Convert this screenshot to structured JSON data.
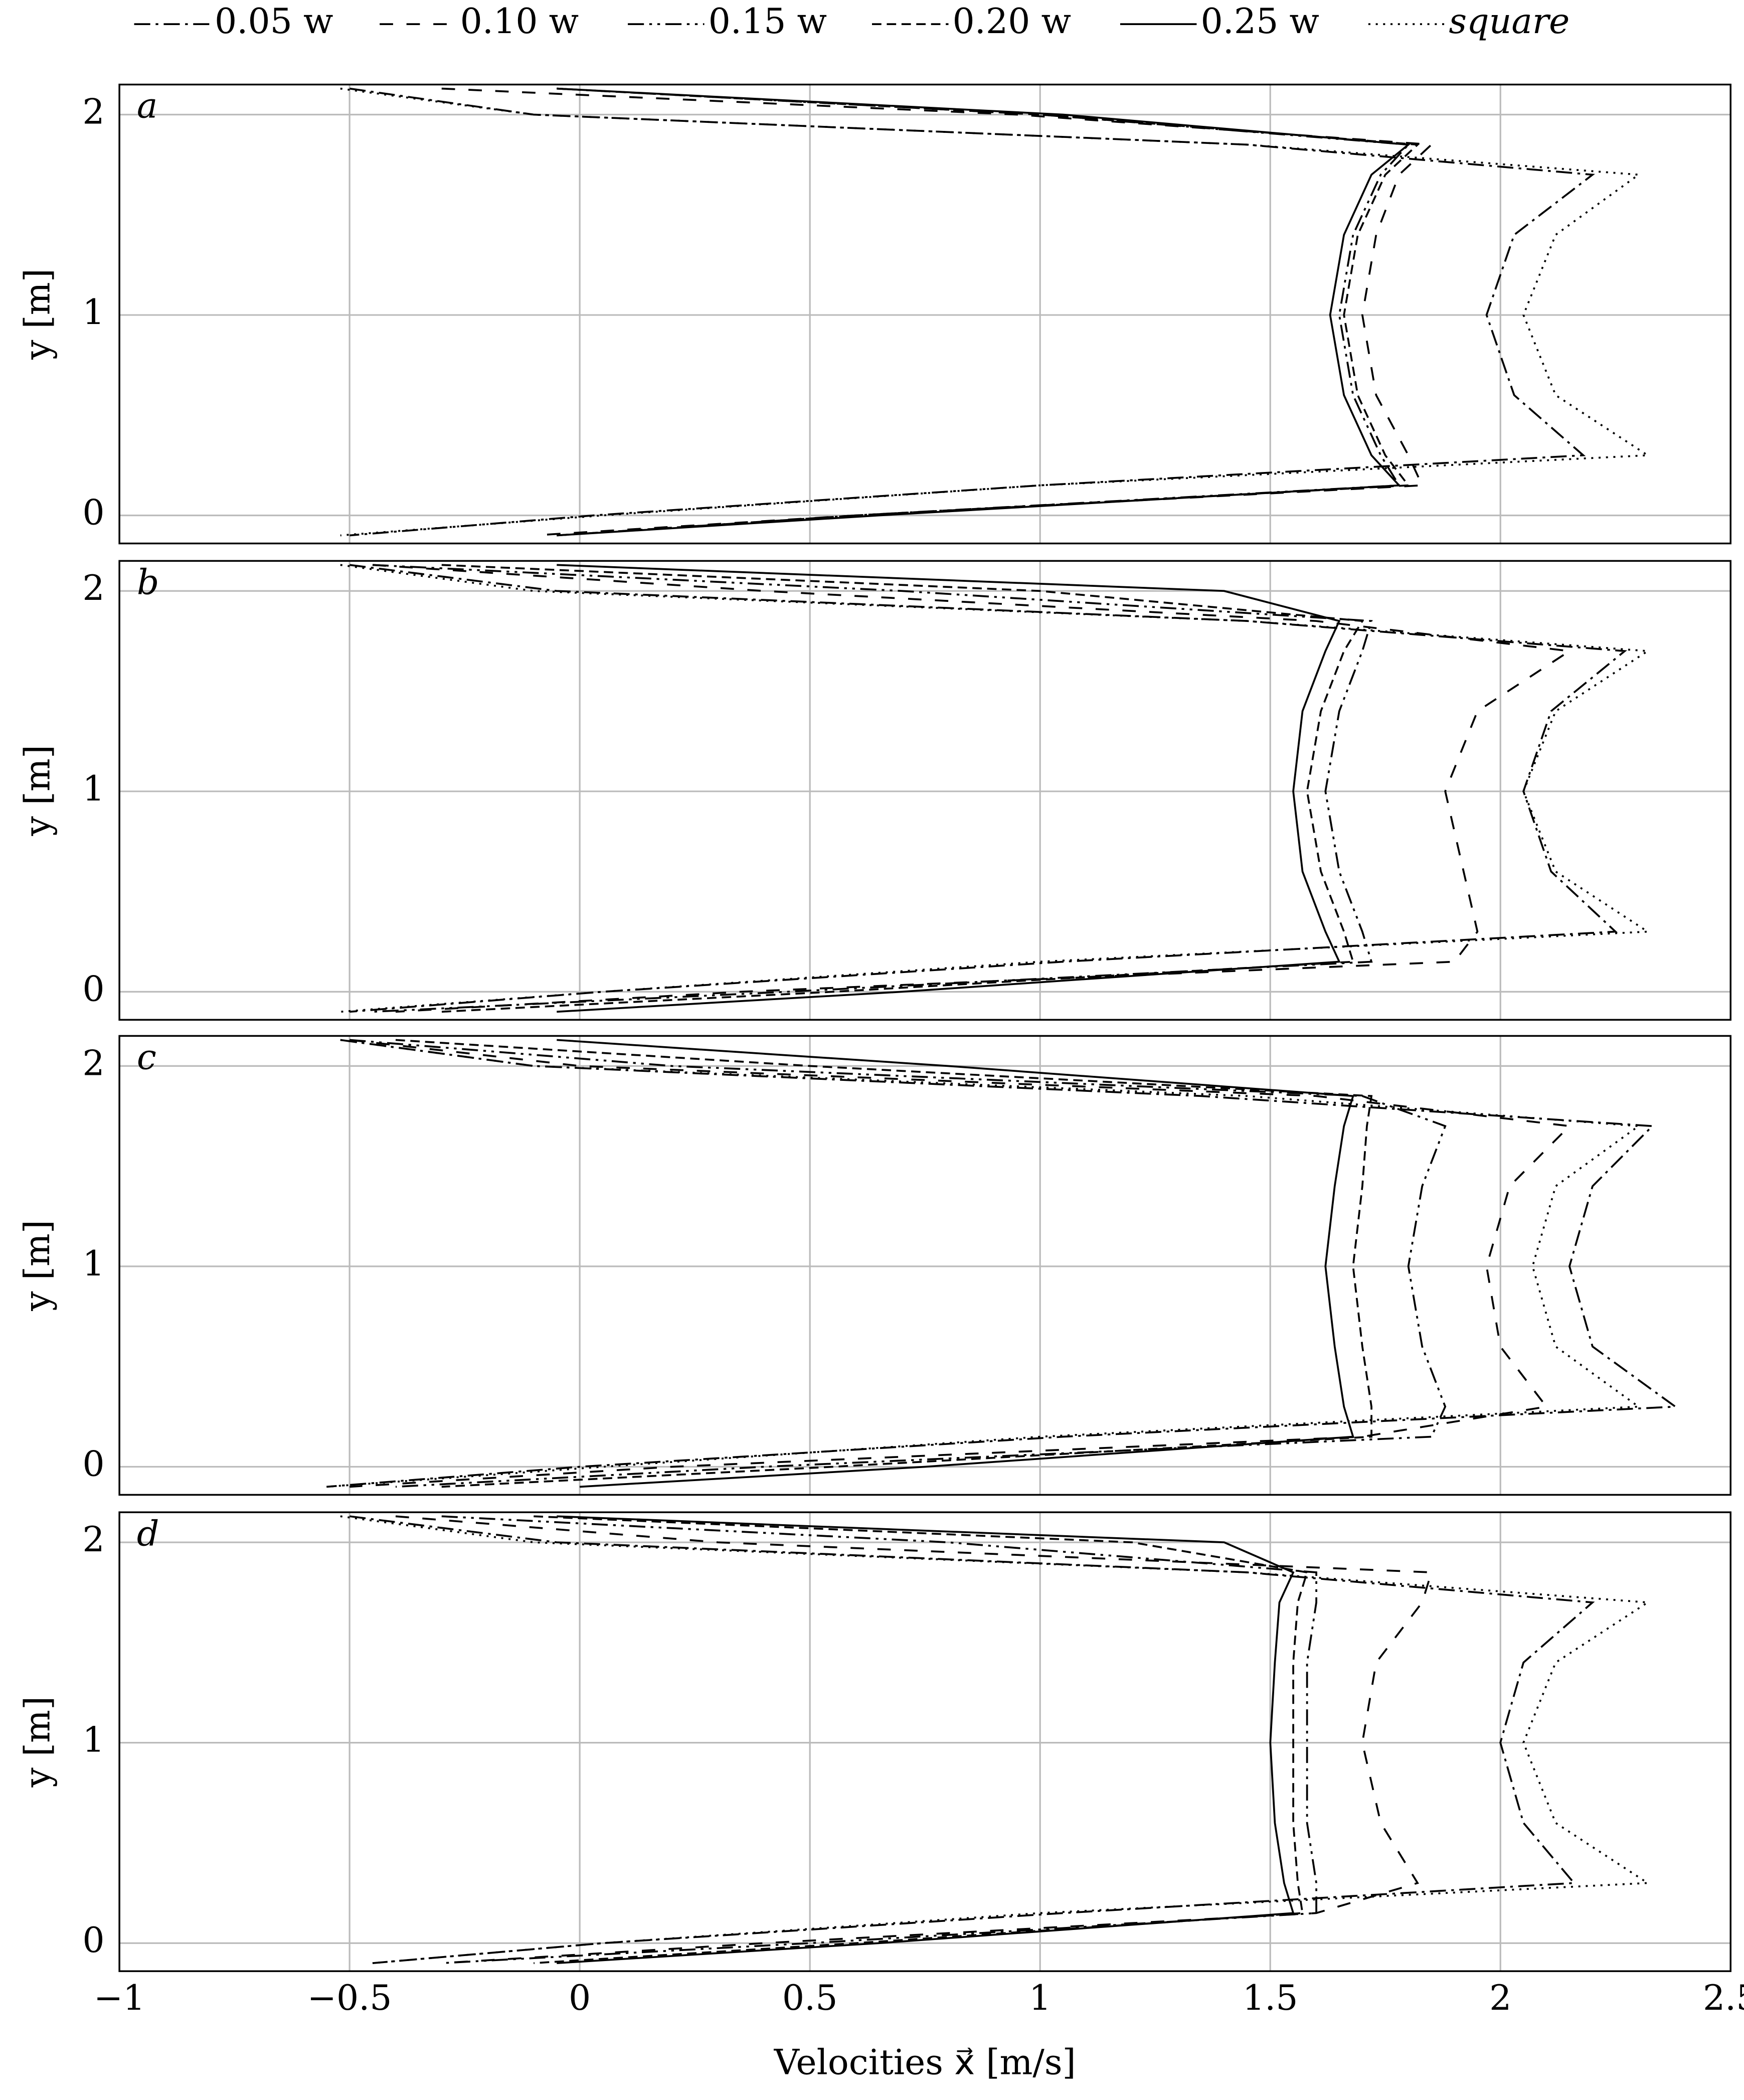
{
  "chart_data": [
    {
      "type": "line",
      "label": "a",
      "ylabel": "y [m]",
      "grid": true,
      "xlim": [
        -1,
        2.5
      ],
      "ylim": [
        -0.14,
        2.15
      ],
      "xticks": [
        {
          "value": -1,
          "label": "−1"
        },
        {
          "value": -0.5,
          "label": "−0.5"
        },
        0,
        0.5,
        1,
        1.5,
        2,
        2.5
      ],
      "yticks": [
        0,
        1,
        2
      ],
      "y": [
        2.13,
        2.0,
        1.85,
        1.7,
        1.4,
        1.0,
        0.6,
        0.3,
        0.15,
        0.0,
        -0.1
      ],
      "series": [
        {
          "name": "0.05 w",
          "dash": "dashdot",
          "color": "#000",
          "values": [
            -0.5,
            -0.1,
            1.45,
            2.2,
            2.03,
            1.97,
            2.03,
            2.18,
            1.0,
            0.03,
            -0.5
          ]
        },
        {
          "name": "0.10 w",
          "dash": "loosedash",
          "color": "#000",
          "values": [
            -0.3,
            0.95,
            1.85,
            1.78,
            1.73,
            1.7,
            1.73,
            1.8,
            1.83,
            0.6,
            -0.1
          ]
        },
        {
          "name": "0.15 w",
          "dash": "dashdotdot",
          "color": "#000",
          "values": [
            -0.05,
            1.0,
            1.8,
            1.74,
            1.68,
            1.65,
            1.68,
            1.74,
            1.78,
            0.6,
            -0.05
          ]
        },
        {
          "name": "0.20 w",
          "dash": "dash",
          "color": "#000",
          "values": [
            -0.05,
            1.0,
            1.82,
            1.75,
            1.69,
            1.66,
            1.69,
            1.75,
            1.8,
            0.6,
            -0.05
          ]
        },
        {
          "name": "0.25 w",
          "dash": "solid",
          "color": "#000",
          "values": [
            -0.05,
            1.05,
            1.8,
            1.72,
            1.66,
            1.63,
            1.66,
            1.72,
            1.78,
            0.65,
            -0.05
          ]
        },
        {
          "name": "square",
          "dash": "dot",
          "color": "#000",
          "values": [
            -0.52,
            -0.1,
            1.45,
            2.3,
            2.12,
            2.05,
            2.12,
            2.32,
            1.0,
            0.05,
            -0.52
          ]
        }
      ]
    },
    {
      "type": "line",
      "label": "b",
      "ylabel": "y [m]",
      "grid": true,
      "xlim": [
        -1,
        2.5
      ],
      "ylim": [
        -0.14,
        2.15
      ],
      "xticks": [
        {
          "value": -1,
          "label": "−1"
        },
        {
          "value": -0.5,
          "label": "−0.5"
        },
        0,
        0.5,
        1,
        1.5,
        2,
        2.5
      ],
      "yticks": [
        0,
        1,
        2
      ],
      "y": [
        2.13,
        2.0,
        1.85,
        1.7,
        1.4,
        1.0,
        0.6,
        0.3,
        0.15,
        0.0,
        -0.1
      ],
      "series": [
        {
          "name": "0.05 w",
          "dash": "dashdot",
          "color": "#000",
          "values": [
            -0.5,
            -0.05,
            1.45,
            2.27,
            2.11,
            2.05,
            2.11,
            2.25,
            1.05,
            0.05,
            -0.5
          ]
        },
        {
          "name": "0.10 w",
          "dash": "loosedash",
          "color": "#000",
          "values": [
            -0.45,
            0.4,
            1.6,
            2.15,
            1.95,
            1.88,
            1.92,
            1.95,
            1.9,
            0.35,
            -0.4
          ]
        },
        {
          "name": "0.15 w",
          "dash": "dashdotdot",
          "color": "#000",
          "values": [
            -0.45,
            0.7,
            1.72,
            1.7,
            1.65,
            1.62,
            1.65,
            1.7,
            1.72,
            0.45,
            -0.45
          ]
        },
        {
          "name": "0.20 w",
          "dash": "dash",
          "color": "#000",
          "values": [
            -0.3,
            1.0,
            1.7,
            1.66,
            1.61,
            1.58,
            1.61,
            1.66,
            1.68,
            0.55,
            -0.3
          ]
        },
        {
          "name": "0.25 w",
          "dash": "solid",
          "color": "#000",
          "values": [
            -0.05,
            1.4,
            1.65,
            1.62,
            1.57,
            1.55,
            1.57,
            1.62,
            1.65,
            0.7,
            -0.05
          ]
        },
        {
          "name": "square",
          "dash": "dot",
          "color": "#000",
          "values": [
            -0.52,
            -0.1,
            1.45,
            2.32,
            2.12,
            2.05,
            2.12,
            2.32,
            1.0,
            0.05,
            -0.52
          ]
        }
      ]
    },
    {
      "type": "line",
      "label": "c",
      "ylabel": "y [m]",
      "grid": true,
      "xlim": [
        -1,
        2.5
      ],
      "ylim": [
        -0.14,
        2.15
      ],
      "xticks": [
        {
          "value": -1,
          "label": "−1"
        },
        {
          "value": -0.5,
          "label": "−0.5"
        },
        0,
        0.5,
        1,
        1.5,
        2,
        2.5
      ],
      "yticks": [
        0,
        1,
        2
      ],
      "y": [
        2.13,
        2.0,
        1.85,
        1.7,
        1.4,
        1.0,
        0.6,
        0.3,
        0.15,
        0.0,
        -0.1
      ],
      "series": [
        {
          "name": "0.05 w",
          "dash": "dashdot",
          "color": "#000",
          "values": [
            -0.52,
            -0.1,
            1.35,
            2.33,
            2.2,
            2.15,
            2.2,
            2.38,
            1.05,
            0.0,
            -0.55
          ]
        },
        {
          "name": "0.10 w",
          "dash": "loosedash",
          "color": "#000",
          "values": [
            -0.5,
            0.0,
            1.6,
            2.15,
            2.02,
            1.97,
            2.0,
            2.1,
            1.7,
            0.2,
            -0.5
          ]
        },
        {
          "name": "0.15 w",
          "dash": "dashdotdot",
          "color": "#000",
          "values": [
            -0.5,
            0.2,
            1.7,
            1.88,
            1.83,
            1.8,
            1.83,
            1.88,
            1.85,
            0.4,
            -0.4
          ]
        },
        {
          "name": "0.20 w",
          "dash": "dash",
          "color": "#000",
          "values": [
            -0.4,
            0.5,
            1.72,
            1.71,
            1.7,
            1.68,
            1.7,
            1.72,
            1.72,
            0.55,
            -0.3
          ]
        },
        {
          "name": "0.25 w",
          "dash": "solid",
          "color": "#000",
          "values": [
            -0.05,
            0.8,
            1.68,
            1.66,
            1.64,
            1.62,
            1.64,
            1.66,
            1.68,
            0.75,
            0.0
          ]
        },
        {
          "name": "square",
          "dash": "dot",
          "color": "#000",
          "values": [
            -0.52,
            -0.1,
            1.45,
            2.3,
            2.12,
            2.07,
            2.12,
            2.3,
            1.0,
            0.05,
            -0.55
          ]
        }
      ]
    },
    {
      "type": "line",
      "label": "d",
      "ylabel": "y [m]",
      "xlabel": "Velocities x⃗ [m/s]",
      "grid": true,
      "xlim": [
        -1,
        2.5
      ],
      "ylim": [
        -0.14,
        2.15
      ],
      "xticks": [
        {
          "value": -1,
          "label": "−1"
        },
        {
          "value": -0.5,
          "label": "−0.5"
        },
        0,
        0.5,
        1,
        1.5,
        2,
        2.5
      ],
      "yticks": [
        0,
        1,
        2
      ],
      "y": [
        2.13,
        2.0,
        1.85,
        1.7,
        1.4,
        1.0,
        0.6,
        0.3,
        0.15,
        0.0,
        -0.1
      ],
      "series": [
        {
          "name": "0.05 w",
          "dash": "dashdot",
          "color": "#000",
          "values": [
            -0.5,
            -0.05,
            1.45,
            2.2,
            2.05,
            2.0,
            2.05,
            2.16,
            1.05,
            0.05,
            -0.45
          ]
        },
        {
          "name": "0.10 w",
          "dash": "loosedash",
          "color": "#000",
          "values": [
            -0.4,
            0.3,
            1.85,
            1.83,
            1.73,
            1.7,
            1.74,
            1.82,
            1.6,
            0.4,
            -0.3
          ]
        },
        {
          "name": "0.15 w",
          "dash": "dashdotdot",
          "color": "#000",
          "values": [
            -0.3,
            0.8,
            1.6,
            1.6,
            1.58,
            1.58,
            1.58,
            1.6,
            1.6,
            0.5,
            -0.3
          ]
        },
        {
          "name": "0.20 w",
          "dash": "dash",
          "color": "#000",
          "values": [
            -0.1,
            1.2,
            1.58,
            1.56,
            1.55,
            1.55,
            1.55,
            1.56,
            1.57,
            0.6,
            -0.1
          ]
        },
        {
          "name": "0.25 w",
          "dash": "solid",
          "color": "#000",
          "values": [
            -0.05,
            1.4,
            1.55,
            1.52,
            1.51,
            1.5,
            1.51,
            1.53,
            1.55,
            0.65,
            -0.05
          ]
        },
        {
          "name": "square",
          "dash": "dot",
          "color": "#000",
          "values": [
            -0.52,
            -0.1,
            1.45,
            2.32,
            2.12,
            2.05,
            2.12,
            2.32,
            1.0,
            0.05,
            -0.45
          ]
        }
      ]
    }
  ]
}
